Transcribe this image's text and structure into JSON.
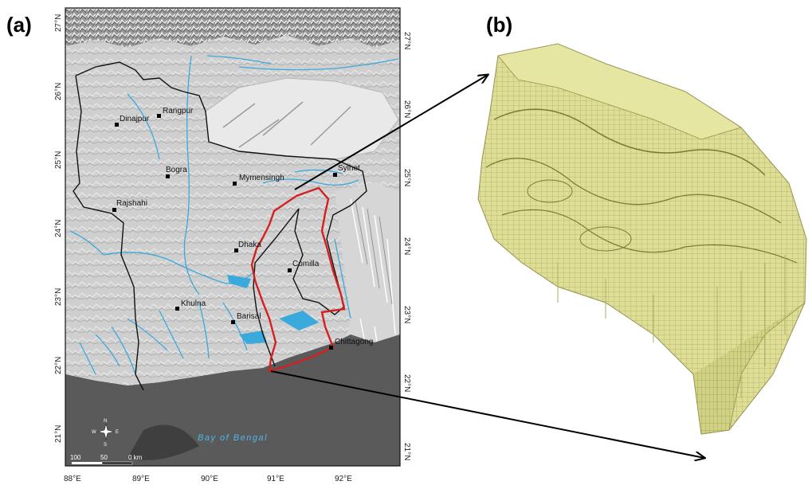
{
  "figure": {
    "panel_a_label": "(a)",
    "panel_b_label": "(b)"
  },
  "map": {
    "x_ticks": [
      "88°E",
      "89°E",
      "90°E",
      "91°E",
      "92°E"
    ],
    "y_ticks": [
      "27°N",
      "26°N",
      "25°N",
      "24°N",
      "23°N",
      "22°N",
      "21°N"
    ],
    "sea_label": "Bay of Bengal",
    "scale_labels": [
      "100",
      "50",
      "0 km"
    ],
    "compass_letters": [
      "N",
      "S",
      "W",
      "E"
    ],
    "cities": [
      {
        "name": "Dinajpur"
      },
      {
        "name": "Rangpur"
      },
      {
        "name": "Bogra"
      },
      {
        "name": "Rajshahi"
      },
      {
        "name": "Mymensingh"
      },
      {
        "name": "Sylhet"
      },
      {
        "name": "Dhaka"
      },
      {
        "name": "Comilla"
      },
      {
        "name": "Khulna"
      },
      {
        "name": "Barisal"
      },
      {
        "name": "Chittagong"
      }
    ],
    "colors": {
      "land": "#c9c9c9",
      "sea": "#5a5a5a",
      "rivers": "#3aa9dc",
      "study_area": "#d42020",
      "model_fill": "#d8d88a",
      "model_edge": "#8a8a40"
    }
  }
}
